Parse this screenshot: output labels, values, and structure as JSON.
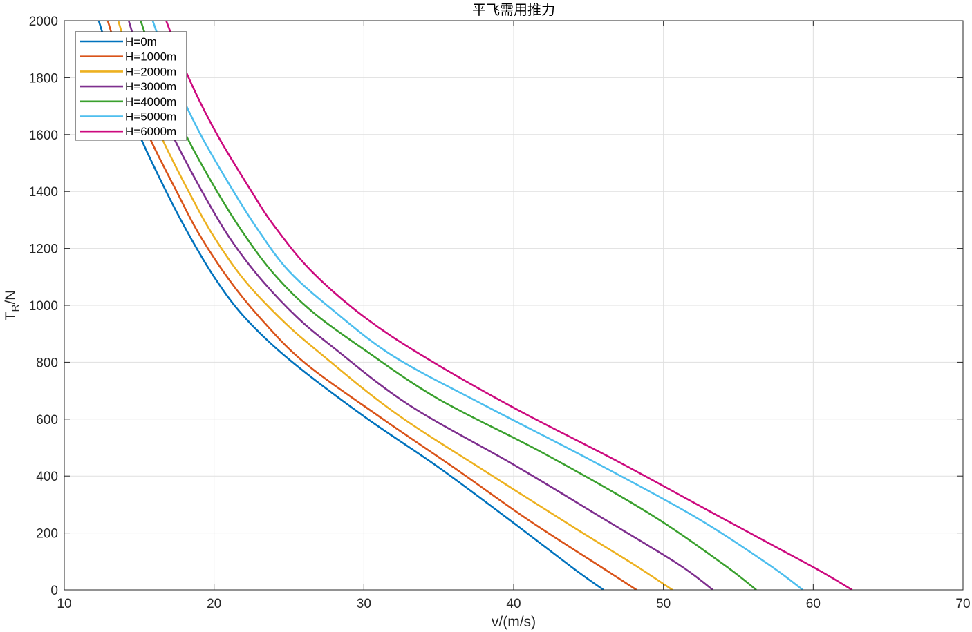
{
  "chart_data": {
    "type": "line",
    "title": "平飞需用推力",
    "xlabel": "v/(m/s)",
    "ylabel_main": "T",
    "ylabel_sub": "R",
    "ylabel_suffix": "/N",
    "xlim": [
      10,
      70
    ],
    "ylim": [
      0,
      2000
    ],
    "xticks": [
      10,
      20,
      30,
      40,
      50,
      60,
      70
    ],
    "yticks": [
      0,
      200,
      400,
      600,
      800,
      1000,
      1200,
      1400,
      1600,
      1800,
      2000
    ],
    "grid": true,
    "legend_position": "top-left",
    "series": [
      {
        "name": "H=0m",
        "color": "#0072BD",
        "points": [
          [
            12.3,
            2000
          ],
          [
            13.5,
            1800
          ],
          [
            15,
            1600
          ],
          [
            16.8,
            1400
          ],
          [
            18.3,
            1250
          ],
          [
            20,
            1100
          ],
          [
            22,
            960
          ],
          [
            25,
            810
          ],
          [
            30,
            610
          ],
          [
            35,
            430
          ],
          [
            40,
            235
          ],
          [
            44,
            75
          ],
          [
            46,
            0
          ]
        ]
      },
      {
        "name": "H=1000m",
        "color": "#D95319",
        "points": [
          [
            12.9,
            2000
          ],
          [
            14.1,
            1800
          ],
          [
            15.6,
            1600
          ],
          [
            17.5,
            1400
          ],
          [
            19,
            1250
          ],
          [
            21,
            1090
          ],
          [
            23,
            960
          ],
          [
            26,
            800
          ],
          [
            31,
            610
          ],
          [
            36,
            430
          ],
          [
            41,
            245
          ],
          [
            46,
            75
          ],
          [
            48.2,
            0
          ]
        ]
      },
      {
        "name": "H=2000m",
        "color": "#EDB120",
        "points": [
          [
            13.6,
            2000
          ],
          [
            14.8,
            1800
          ],
          [
            16.4,
            1600
          ],
          [
            18.3,
            1400
          ],
          [
            20,
            1240
          ],
          [
            22,
            1090
          ],
          [
            24.5,
            950
          ],
          [
            27,
            835
          ],
          [
            32,
            625
          ],
          [
            38,
            420
          ],
          [
            44,
            220
          ],
          [
            48,
            90
          ],
          [
            50.6,
            0
          ]
        ]
      },
      {
        "name": "H=3000m",
        "color": "#7E2F8E",
        "points": [
          [
            14.3,
            2000
          ],
          [
            15.5,
            1800
          ],
          [
            17.2,
            1600
          ],
          [
            19.2,
            1400
          ],
          [
            21,
            1240
          ],
          [
            23,
            1100
          ],
          [
            25.5,
            960
          ],
          [
            28,
            850
          ],
          [
            33,
            650
          ],
          [
            40,
            440
          ],
          [
            46,
            250
          ],
          [
            51,
            90
          ],
          [
            53.3,
            0
          ]
        ]
      },
      {
        "name": "H=4000m",
        "color": "#3AA02E",
        "points": [
          [
            15.1,
            2000
          ],
          [
            16.4,
            1800
          ],
          [
            18.1,
            1600
          ],
          [
            20.2,
            1400
          ],
          [
            22,
            1250
          ],
          [
            24,
            1110
          ],
          [
            26.5,
            980
          ],
          [
            30,
            845
          ],
          [
            35,
            670
          ],
          [
            42,
            480
          ],
          [
            49,
            270
          ],
          [
            54,
            90
          ],
          [
            56.2,
            0
          ]
        ]
      },
      {
        "name": "H=5000m",
        "color": "#4DBEEE",
        "points": [
          [
            15.9,
            2000
          ],
          [
            17.3,
            1800
          ],
          [
            19.1,
            1600
          ],
          [
            21.3,
            1400
          ],
          [
            23,
            1260
          ],
          [
            25,
            1120
          ],
          [
            28,
            980
          ],
          [
            32,
            820
          ],
          [
            38,
            650
          ],
          [
            45,
            460
          ],
          [
            52,
            260
          ],
          [
            57,
            90
          ],
          [
            59.3,
            0
          ]
        ]
      },
      {
        "name": "H=6000m",
        "color": "#CC0A7E",
        "points": [
          [
            16.8,
            2000
          ],
          [
            18.3,
            1800
          ],
          [
            20.2,
            1600
          ],
          [
            22.5,
            1400
          ],
          [
            24,
            1280
          ],
          [
            26.5,
            1120
          ],
          [
            30,
            960
          ],
          [
            34,
            820
          ],
          [
            40,
            640
          ],
          [
            47,
            450
          ],
          [
            54,
            250
          ],
          [
            60,
            80
          ],
          [
            62.6,
            0
          ]
        ]
      }
    ]
  }
}
